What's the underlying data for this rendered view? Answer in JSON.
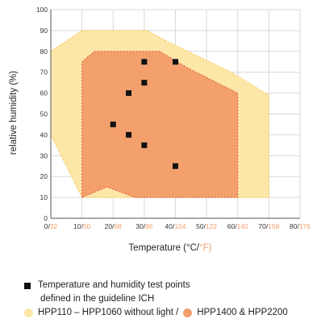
{
  "colors": {
    "outer_fill": "#fde7a8",
    "outer_stroke": "#f0c64a",
    "inner_fill": "#f3a06d",
    "inner_stroke": "#e4553a",
    "marker": "#111111",
    "grid": "#d9d9d9",
    "fahrenheit": "#f3a06d"
  },
  "legend": {
    "test_points_line1": "Temperature and humidity test points",
    "test_points_line2": "defined in the guideline ICH",
    "outer_label": "HPP110 – HPP1060 without light /",
    "inner_label": "HPP1400 & HPP2200"
  },
  "chart_data": {
    "type": "scatter",
    "ylabel": "relative humidity (%)",
    "xlabel_prefix": "Temperature (°C/",
    "xlabel_suffix": "°F)",
    "xlim": [
      0,
      80
    ],
    "ylim": [
      0,
      100
    ],
    "y_ticks": [
      "0",
      "10",
      "20",
      "30",
      "40",
      "50",
      "60",
      "70",
      "80",
      "90",
      "100"
    ],
    "x_ticks": [
      {
        "c": "0",
        "f": "32"
      },
      {
        "c": "10",
        "f": "50"
      },
      {
        "c": "20",
        "f": "68"
      },
      {
        "c": "30",
        "f": "86"
      },
      {
        "c": "40",
        "f": "104"
      },
      {
        "c": "50",
        "f": "122"
      },
      {
        "c": "60",
        "f": "140"
      },
      {
        "c": "70",
        "f": "158"
      },
      {
        "c": "80",
        "f": "176"
      }
    ],
    "grid": true,
    "regions": [
      {
        "label": "HPP110 – HPP1060 without light",
        "polygon": [
          [
            0,
            40
          ],
          [
            0,
            80
          ],
          [
            10,
            90
          ],
          [
            31,
            90
          ],
          [
            37,
            85
          ],
          [
            58,
            70
          ],
          [
            70,
            59
          ],
          [
            70,
            10
          ],
          [
            10,
            10
          ],
          [
            0,
            40
          ]
        ]
      },
      {
        "label": "HPP1400 & HPP2200",
        "polygon": [
          [
            10,
            10
          ],
          [
            10,
            75
          ],
          [
            14,
            80
          ],
          [
            35,
            80
          ],
          [
            44,
            72
          ],
          [
            60,
            60
          ],
          [
            60,
            10
          ],
          [
            27,
            10
          ],
          [
            18,
            15
          ],
          [
            10,
            10
          ]
        ]
      }
    ],
    "test_points": [
      {
        "x": 20,
        "y": 45
      },
      {
        "x": 25,
        "y": 40
      },
      {
        "x": 25,
        "y": 60
      },
      {
        "x": 30,
        "y": 35
      },
      {
        "x": 30,
        "y": 65
      },
      {
        "x": 30,
        "y": 75
      },
      {
        "x": 40,
        "y": 25
      },
      {
        "x": 40,
        "y": 75
      }
    ]
  }
}
